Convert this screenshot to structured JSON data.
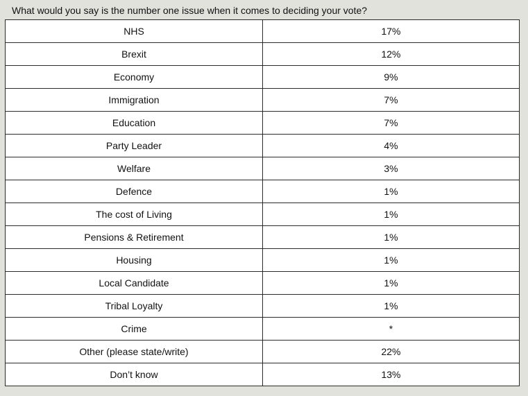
{
  "question": "What would you say is the number one issue when it comes to deciding your vote?",
  "chart_data": {
    "type": "table",
    "title": "What would you say is the number one issue when it comes to deciding your vote?",
    "rows": [
      {
        "label": "NHS",
        "value": "17%"
      },
      {
        "label": "Brexit",
        "value": "12%"
      },
      {
        "label": "Economy",
        "value": "9%"
      },
      {
        "label": "Immigration",
        "value": "7%"
      },
      {
        "label": "Education",
        "value": "7%"
      },
      {
        "label": "Party Leader",
        "value": "4%"
      },
      {
        "label": "Welfare",
        "value": "3%"
      },
      {
        "label": "Defence",
        "value": "1%"
      },
      {
        "label": "The cost of Living",
        "value": "1%"
      },
      {
        "label": "Pensions & Retirement",
        "value": "1%"
      },
      {
        "label": "Housing",
        "value": "1%"
      },
      {
        "label": "Local Candidate",
        "value": "1%"
      },
      {
        "label": "Tribal Loyalty",
        "value": "1%"
      },
      {
        "label": "Crime",
        "value": "*"
      },
      {
        "label": "Other (please state/write)",
        "value": "22%"
      },
      {
        "label": "Don’t know",
        "value": "13%"
      }
    ]
  }
}
